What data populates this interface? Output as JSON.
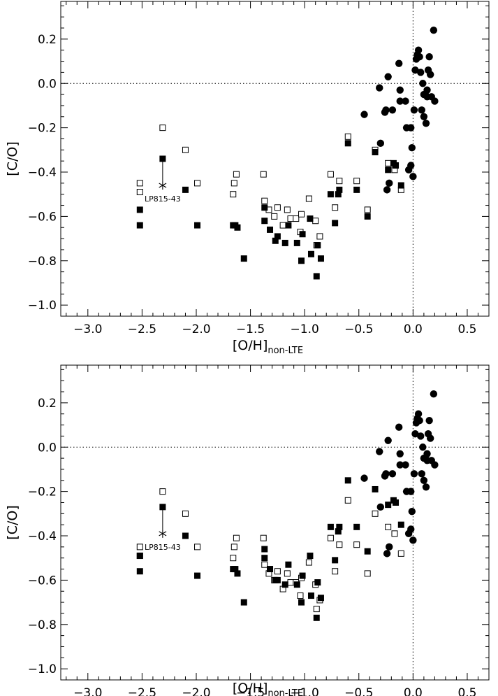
{
  "chart_data": [
    {
      "type": "scatter",
      "title": "",
      "xlabel_main": "[O/H]",
      "xlabel_sub": "non-LTE",
      "ylabel": "[C/O]",
      "xlim": [
        -3.25,
        0.7
      ],
      "ylim": [
        -1.05,
        0.37
      ],
      "xticks": [
        -3.0,
        -2.5,
        -2.0,
        -1.5,
        -1.0,
        -0.5,
        0.0,
        0.5
      ],
      "xtick_labels": [
        "−3.0",
        "−2.5",
        "−2.0",
        "−1.5",
        "−1.0",
        "−0.5",
        "0.0",
        "0.5"
      ],
      "yticks": [
        -1.0,
        -0.8,
        -0.6,
        -0.4,
        -0.2,
        0.0,
        0.2
      ],
      "ytick_labels": [
        "−1.0",
        "−0.8",
        "−0.6",
        "−0.4",
        "−0.2",
        "0.0",
        "0.2"
      ],
      "reference_lines": {
        "x": 0.0,
        "y": 0.0
      },
      "annotation": {
        "label": "LP815-43",
        "x": -2.31,
        "y": -0.46,
        "link_to": -0.34
      },
      "series": [
        {
          "marker": "open-square",
          "x": [
            -2.52,
            -2.52,
            -2.31,
            -2.1,
            -1.99,
            -1.66,
            -1.65,
            -1.63,
            -1.38,
            -1.37,
            -1.33,
            -1.28,
            -1.25,
            -1.2,
            -1.16,
            -1.13,
            -1.08,
            -1.03,
            -1.04,
            -0.96,
            -0.9,
            -0.89,
            -0.86,
            -0.76,
            -0.72,
            -0.68,
            -0.6,
            -0.52,
            -0.42,
            -0.35,
            -0.23,
            -0.17,
            -0.11
          ],
          "y": [
            -0.45,
            -0.49,
            -0.2,
            -0.3,
            -0.45,
            -0.5,
            -0.45,
            -0.41,
            -0.41,
            -0.53,
            -0.57,
            -0.6,
            -0.56,
            -0.64,
            -0.57,
            -0.61,
            -0.61,
            -0.59,
            -0.67,
            -0.52,
            -0.62,
            -0.73,
            -0.69,
            -0.41,
            -0.56,
            -0.44,
            -0.24,
            -0.44,
            -0.57,
            -0.3,
            -0.36,
            -0.39,
            -0.48
          ]
        },
        {
          "marker": "filled-square",
          "x": [
            -2.52,
            -2.52,
            -2.31,
            -2.1,
            -1.99,
            -1.66,
            -1.64,
            -1.62,
            -1.56,
            -1.37,
            -1.37,
            -1.32,
            -1.27,
            -1.25,
            -1.18,
            -1.15,
            -1.07,
            -1.03,
            -1.02,
            -0.95,
            -0.94,
            -0.89,
            -0.88,
            -0.85,
            -0.76,
            -0.72,
            -0.69,
            -0.68,
            -0.6,
            -0.52,
            -0.42,
            -0.35,
            -0.23,
            -0.18,
            -0.16,
            -0.11
          ],
          "y": [
            -0.57,
            -0.64,
            -0.34,
            -0.48,
            -0.64,
            -0.64,
            -0.64,
            -0.65,
            -0.79,
            -0.56,
            -0.62,
            -0.66,
            -0.71,
            -0.69,
            -0.72,
            -0.64,
            -0.72,
            -0.8,
            -0.68,
            -0.61,
            -0.77,
            -0.87,
            -0.73,
            -0.79,
            -0.5,
            -0.63,
            -0.5,
            -0.48,
            -0.27,
            -0.48,
            -0.6,
            -0.31,
            -0.39,
            -0.36,
            -0.37,
            -0.46
          ]
        },
        {
          "marker": "filled-circle",
          "x": [
            -0.45,
            -0.31,
            -0.3,
            -0.26,
            -0.25,
            -0.24,
            -0.23,
            -0.22,
            -0.19,
            -0.13,
            -0.12,
            -0.12,
            -0.07,
            -0.06,
            -0.04,
            -0.02,
            -0.02,
            -0.01,
            0.0,
            0.01,
            0.02,
            0.03,
            0.04,
            0.05,
            0.06,
            0.07,
            0.08,
            0.09,
            0.1,
            0.1,
            0.12,
            0.13,
            0.13,
            0.14,
            0.15,
            0.16,
            0.17,
            0.19,
            0.2
          ],
          "y": [
            -0.14,
            -0.02,
            -0.27,
            -0.13,
            -0.12,
            -0.48,
            0.03,
            -0.45,
            -0.12,
            0.09,
            -0.03,
            -0.08,
            -0.08,
            -0.2,
            -0.39,
            -0.37,
            -0.2,
            -0.29,
            -0.42,
            -0.12,
            0.06,
            0.11,
            0.13,
            0.15,
            0.12,
            0.05,
            -0.12,
            0.0,
            -0.05,
            -0.15,
            -0.18,
            -0.03,
            -0.06,
            0.06,
            0.12,
            0.04,
            -0.06,
            0.24,
            -0.08
          ]
        }
      ]
    },
    {
      "type": "scatter",
      "title": "",
      "xlabel_main": "[O/H]",
      "xlabel_sub": "non-LTE",
      "ylabel": "[C/O]",
      "xlim": [
        -3.25,
        0.7
      ],
      "ylim": [
        -1.05,
        0.37
      ],
      "xticks": [
        -3.0,
        -2.5,
        -2.0,
        -1.5,
        -1.0,
        -0.5,
        0.0,
        0.5
      ],
      "xtick_labels": [
        "−3.0",
        "−2.5",
        "−2.0",
        "−1.5",
        "−1.0",
        "−0.5",
        "0.0",
        "0.5"
      ],
      "yticks": [
        -1.0,
        -0.8,
        -0.6,
        -0.4,
        -0.2,
        0.0,
        0.2
      ],
      "ytick_labels": [
        "−1.0",
        "−0.8",
        "−0.6",
        "−0.4",
        "−0.2",
        "0.0",
        "0.2"
      ],
      "reference_lines": {
        "x": 0.0,
        "y": 0.0
      },
      "annotation": {
        "label": "LP815-43",
        "x": -2.31,
        "y": -0.39,
        "link_to": -0.27
      },
      "series": [
        {
          "marker": "open-square",
          "x": [
            -2.52,
            -2.52,
            -2.31,
            -2.1,
            -1.99,
            -1.66,
            -1.65,
            -1.63,
            -1.38,
            -1.37,
            -1.33,
            -1.28,
            -1.25,
            -1.2,
            -1.16,
            -1.13,
            -1.08,
            -1.03,
            -1.04,
            -0.96,
            -0.9,
            -0.89,
            -0.86,
            -0.76,
            -0.72,
            -0.68,
            -0.6,
            -0.52,
            -0.42,
            -0.35,
            -0.23,
            -0.17,
            -0.11
          ],
          "y": [
            -0.45,
            -0.49,
            -0.2,
            -0.3,
            -0.45,
            -0.5,
            -0.45,
            -0.41,
            -0.41,
            -0.53,
            -0.57,
            -0.6,
            -0.56,
            -0.64,
            -0.57,
            -0.61,
            -0.61,
            -0.59,
            -0.67,
            -0.52,
            -0.62,
            -0.73,
            -0.69,
            -0.41,
            -0.56,
            -0.44,
            -0.24,
            -0.44,
            -0.57,
            -0.3,
            -0.36,
            -0.39,
            -0.48
          ]
        },
        {
          "marker": "filled-square",
          "x": [
            -2.52,
            -2.52,
            -2.31,
            -2.1,
            -1.99,
            -1.66,
            -1.64,
            -1.62,
            -1.56,
            -1.37,
            -1.37,
            -1.32,
            -1.27,
            -1.25,
            -1.18,
            -1.15,
            -1.07,
            -1.03,
            -1.02,
            -0.95,
            -0.94,
            -0.89,
            -0.88,
            -0.85,
            -0.76,
            -0.72,
            -0.69,
            -0.68,
            -0.6,
            -0.52,
            -0.42,
            -0.35,
            -0.23,
            -0.18,
            -0.16,
            -0.11
          ],
          "y": [
            -0.49,
            -0.56,
            -0.27,
            -0.4,
            -0.58,
            -0.55,
            -0.55,
            -0.57,
            -0.7,
            -0.46,
            -0.5,
            -0.55,
            -0.6,
            -0.6,
            -0.62,
            -0.53,
            -0.62,
            -0.7,
            -0.58,
            -0.49,
            -0.67,
            -0.77,
            -0.61,
            -0.68,
            -0.36,
            -0.51,
            -0.38,
            -0.36,
            -0.15,
            -0.36,
            -0.47,
            -0.19,
            -0.26,
            -0.24,
            -0.25,
            -0.35
          ]
        },
        {
          "marker": "filled-circle",
          "x": [
            -0.45,
            -0.31,
            -0.3,
            -0.26,
            -0.25,
            -0.24,
            -0.23,
            -0.22,
            -0.19,
            -0.13,
            -0.12,
            -0.12,
            -0.07,
            -0.06,
            -0.04,
            -0.02,
            -0.02,
            -0.01,
            0.0,
            0.01,
            0.02,
            0.03,
            0.04,
            0.05,
            0.06,
            0.07,
            0.08,
            0.09,
            0.1,
            0.1,
            0.12,
            0.13,
            0.13,
            0.14,
            0.15,
            0.16,
            0.17,
            0.19,
            0.2
          ],
          "y": [
            -0.14,
            -0.02,
            -0.27,
            -0.13,
            -0.12,
            -0.48,
            0.03,
            -0.45,
            -0.12,
            0.09,
            -0.03,
            -0.08,
            -0.08,
            -0.2,
            -0.39,
            -0.37,
            -0.2,
            -0.29,
            -0.42,
            -0.12,
            0.06,
            0.11,
            0.13,
            0.15,
            0.12,
            0.05,
            -0.12,
            0.0,
            -0.05,
            -0.15,
            -0.18,
            -0.03,
            -0.06,
            0.06,
            0.12,
            0.04,
            -0.06,
            0.24,
            -0.08
          ]
        }
      ]
    }
  ]
}
